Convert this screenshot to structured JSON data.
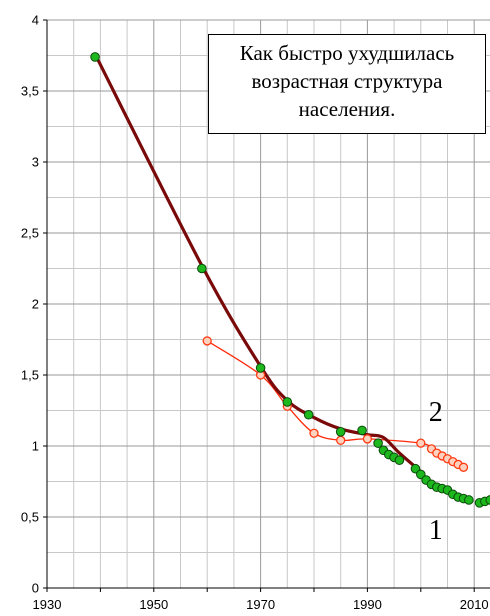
{
  "chart_data": {
    "type": "line",
    "title_lines": [
      "Как быстро ухудшилась",
      "возрастная структура",
      "населения."
    ],
    "xlabel": "",
    "ylabel": "",
    "xlim": [
      1930,
      2013
    ],
    "ylim": [
      0,
      4
    ],
    "x_ticks": [
      1930,
      1950,
      1970,
      1990,
      2010
    ],
    "x_tick_labels": [
      "1930",
      "1950",
      "1970",
      "1990",
      "2010"
    ],
    "x_minor_step": 5,
    "y_ticks": [
      0,
      0.5,
      1,
      1.5,
      2,
      2.5,
      3,
      3.5,
      4
    ],
    "y_tick_labels": [
      "0",
      "0,5",
      "1",
      "1,5",
      "2",
      "2,5",
      "3",
      "3,5",
      "4"
    ],
    "y_minor_step": 0.25,
    "grid": true,
    "series": [
      {
        "name": "1",
        "color": "#1db81d",
        "points_x": [
          1939,
          1959,
          1970,
          1975,
          1979,
          1985,
          1989,
          1992,
          1993,
          1994,
          1995,
          1996,
          1999,
          2000,
          2001,
          2002,
          2003,
          2004,
          2005,
          2006,
          2007,
          2008,
          2009,
          2011,
          2012,
          2013
        ],
        "points_y": [
          3.74,
          2.25,
          1.55,
          1.31,
          1.22,
          1.1,
          1.11,
          1.02,
          0.97,
          0.94,
          0.92,
          0.9,
          0.84,
          0.8,
          0.76,
          0.73,
          0.71,
          0.7,
          0.69,
          0.66,
          0.64,
          0.63,
          0.62,
          0.6,
          0.61,
          0.62
        ]
      },
      {
        "name": "2",
        "color": "#ff5a36",
        "points_x": [
          1960,
          1970,
          1975,
          1980,
          1985,
          1990,
          2000,
          2002,
          2003,
          2004,
          2005,
          2006,
          2007,
          2008
        ],
        "points_y": [
          1.74,
          1.5,
          1.28,
          1.09,
          1.04,
          1.05,
          1.02,
          0.98,
          0.95,
          0.93,
          0.91,
          0.89,
          0.87,
          0.85
        ]
      },
      {
        "name": "trend",
        "color": "#7a0a0a",
        "points_x": [
          1939,
          1959,
          1970,
          1975,
          1980,
          1985,
          1990,
          1993,
          1996,
          2000
        ],
        "points_y": [
          3.76,
          2.27,
          1.56,
          1.32,
          1.2,
          1.12,
          1.08,
          1.06,
          0.95,
          0.82
        ]
      }
    ],
    "annotations": [
      {
        "text": "2",
        "x": 2000,
        "y": 1.23
      },
      {
        "text": "1",
        "x": 2000,
        "y": 0.4
      }
    ]
  }
}
